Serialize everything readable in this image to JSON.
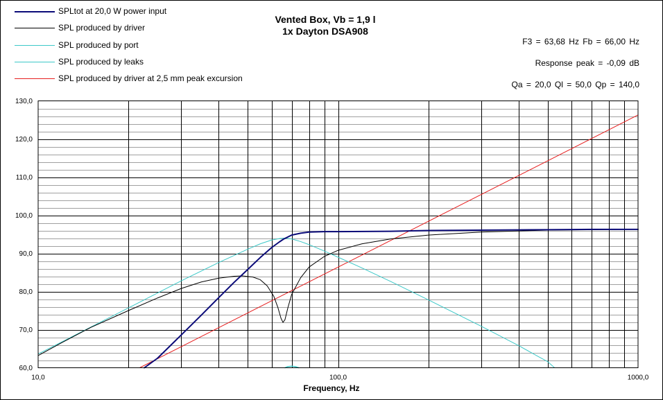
{
  "title": {
    "line1": "Vented Box, Vb = 1,9 l",
    "line2": "1x Dayton DSA908"
  },
  "info": {
    "f3_fb": "F3 = 63,68 Hz  Fb = 66,00 Hz",
    "response_peak": "Response  peak = -0,09 dB",
    "q_values": "Qa = 20,0  Ql = 50,0  Qp = 140,0"
  },
  "colors": {
    "spl_total": "#0a0a78",
    "driver": "#000000",
    "port": "#3cc8c8",
    "leaks": "#3cc8c8",
    "excursion": "#e61e1e",
    "grid_major": "#000000",
    "grid_minor": "#a0a0a0"
  },
  "chart_data": {
    "type": "line",
    "xlabel": "Frequency, Hz",
    "ylabel": "",
    "xscale": "log",
    "xlim": [
      10,
      1000
    ],
    "ylim": [
      60,
      130
    ],
    "x_ticks": [
      "10,0",
      "100,0",
      "1000,0"
    ],
    "y_ticks": [
      "60,0",
      "70,0",
      "80,0",
      "90,0",
      "100,0",
      "110,0",
      "120,0",
      "130,0"
    ],
    "grid": true,
    "legend_position": "top-left",
    "series": [
      {
        "name": "SPLtot at 20,0 W power input",
        "color_key": "spl_total",
        "points": [
          [
            22.6,
            60
          ],
          [
            25,
            62.5
          ],
          [
            30,
            68.6
          ],
          [
            35,
            73.8
          ],
          [
            40,
            78.4
          ],
          [
            45,
            82.4
          ],
          [
            50,
            85.8
          ],
          [
            55,
            88.9
          ],
          [
            60,
            91.5
          ],
          [
            63.7,
            93
          ],
          [
            66,
            93.8
          ],
          [
            70,
            94.8
          ],
          [
            75,
            95.3
          ],
          [
            80,
            95.6
          ],
          [
            90,
            95.7
          ],
          [
            100,
            95.7
          ],
          [
            150,
            95.8
          ],
          [
            200,
            96
          ],
          [
            300,
            96.1
          ],
          [
            500,
            96.2
          ],
          [
            700,
            96.3
          ],
          [
            1000,
            96.3
          ]
        ]
      },
      {
        "name": "SPL produced by driver",
        "color_key": "driver",
        "points": [
          [
            10,
            63.2
          ],
          [
            12,
            66.6
          ],
          [
            15,
            70.6
          ],
          [
            20,
            75
          ],
          [
            25,
            78.3
          ],
          [
            30,
            80.8
          ],
          [
            35,
            82.5
          ],
          [
            40,
            83.5
          ],
          [
            45,
            84
          ],
          [
            48,
            84.1
          ],
          [
            52,
            83.8
          ],
          [
            55,
            83.1
          ],
          [
            58,
            81.5
          ],
          [
            61,
            78.8
          ],
          [
            63,
            75.8
          ],
          [
            64.5,
            73
          ],
          [
            65.5,
            71.9
          ],
          [
            66.5,
            72.6
          ],
          [
            68,
            75.7
          ],
          [
            70,
            79.2
          ],
          [
            75,
            83.6
          ],
          [
            80,
            86.4
          ],
          [
            90,
            89.2
          ],
          [
            100,
            90.8
          ],
          [
            120,
            92.5
          ],
          [
            150,
            93.8
          ],
          [
            200,
            94.8
          ],
          [
            300,
            95.6
          ],
          [
            500,
            96.1
          ],
          [
            1000,
            96.3
          ]
        ]
      },
      {
        "name": "SPL produced by port",
        "color_key": "port",
        "points": [
          [
            10,
            63.6
          ],
          [
            15,
            70.7
          ],
          [
            20,
            75.7
          ],
          [
            25,
            79.6
          ],
          [
            30,
            82.8
          ],
          [
            40,
            87.6
          ],
          [
            50,
            91.1
          ],
          [
            55,
            92.5
          ],
          [
            60,
            93.5
          ],
          [
            64,
            93.9
          ],
          [
            66,
            94
          ],
          [
            70,
            93.8
          ],
          [
            75,
            93.1
          ],
          [
            80,
            92.3
          ],
          [
            90,
            90.6
          ],
          [
            100,
            89
          ],
          [
            120,
            86.2
          ],
          [
            150,
            82.6
          ],
          [
            200,
            77.8
          ],
          [
            300,
            70.9
          ],
          [
            400,
            65.8
          ],
          [
            466,
            62.9
          ],
          [
            500,
            61.6
          ],
          [
            527,
            60
          ]
        ]
      },
      {
        "name": "SPL produced by leaks",
        "color_key": "leaks",
        "points": [
          [
            66.5,
            60
          ],
          [
            68,
            60.3
          ],
          [
            70,
            60.4
          ],
          [
            72,
            60.3
          ],
          [
            74,
            60
          ]
        ]
      },
      {
        "name": "SPL produced by driver at 2,5 mm peak excursion",
        "color_key": "excursion",
        "points": [
          [
            21.8,
            60
          ],
          [
            1000,
            126.3
          ]
        ]
      }
    ]
  }
}
